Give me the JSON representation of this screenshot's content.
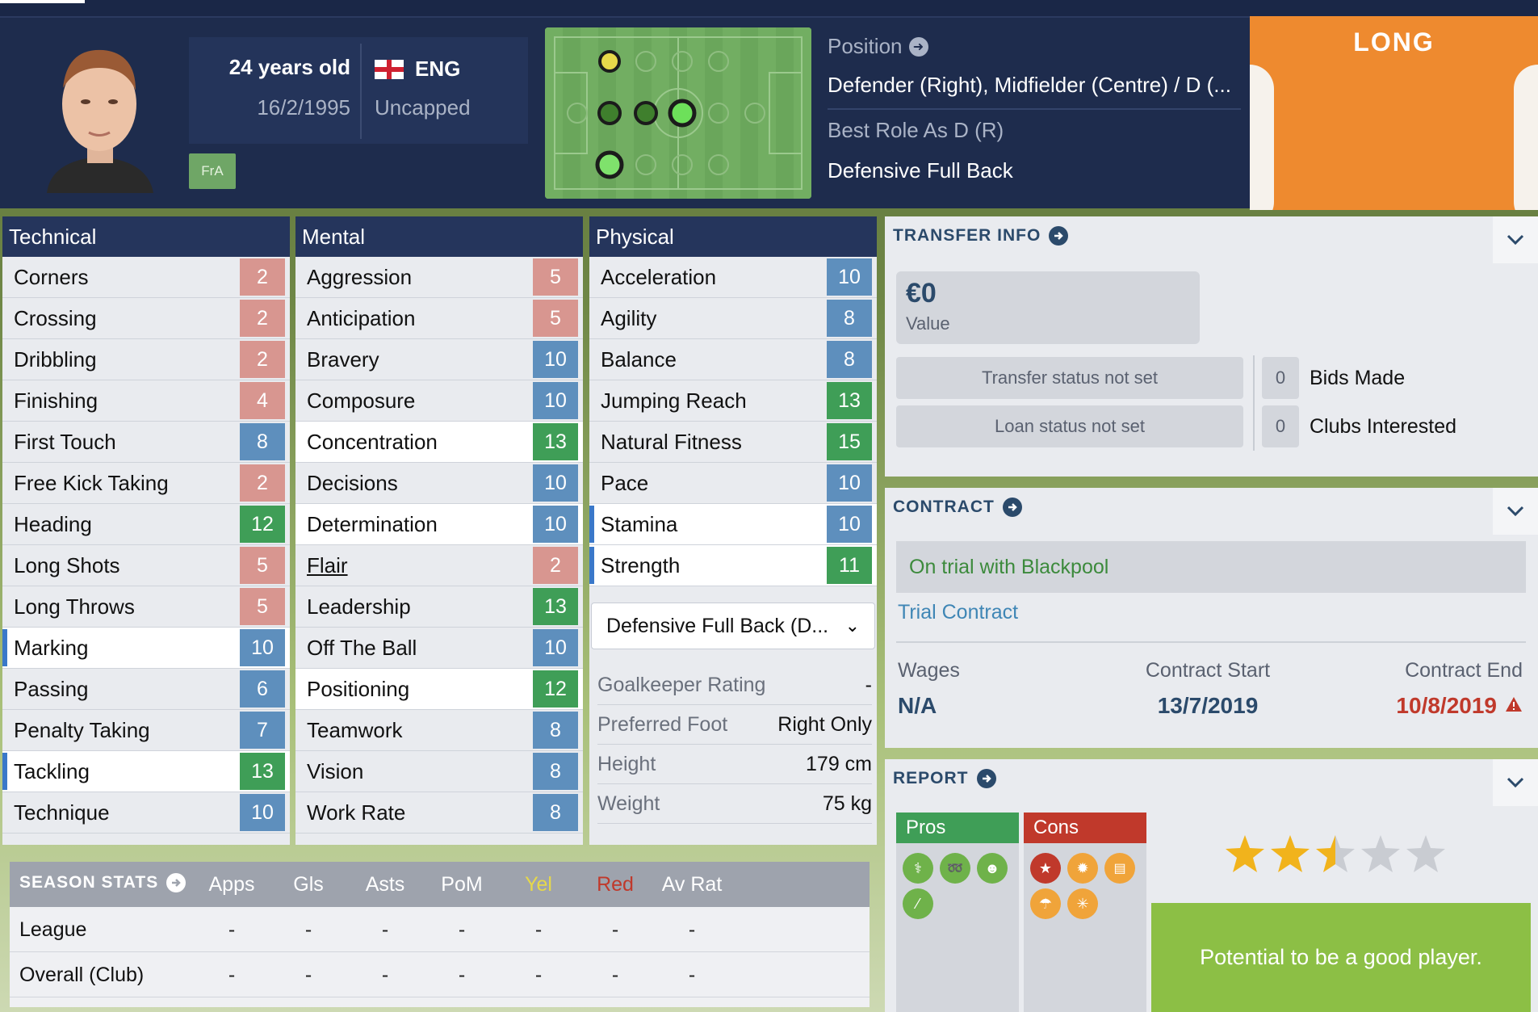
{
  "header": {
    "age": "24 years old",
    "nation": "ENG",
    "dob": "16/2/1995",
    "caps": "Uncapped",
    "badge": "FrA",
    "position_label": "Position",
    "position_value": "Defender (Right), Midfielder (Centre) / D (...",
    "best_role_label": "Best Role As D (R)",
    "best_role_value": "Defensive Full Back",
    "kit_name": "LONG"
  },
  "technical": {
    "title": "Technical",
    "rows": [
      {
        "name": "Corners",
        "value": "2"
      },
      {
        "name": "Crossing",
        "value": "2"
      },
      {
        "name": "Dribbling",
        "value": "2"
      },
      {
        "name": "Finishing",
        "value": "4"
      },
      {
        "name": "First Touch",
        "value": "8"
      },
      {
        "name": "Free Kick Taking",
        "value": "2"
      },
      {
        "name": "Heading",
        "value": "12"
      },
      {
        "name": "Long Shots",
        "value": "5"
      },
      {
        "name": "Long Throws",
        "value": "5"
      },
      {
        "name": "Marking",
        "value": "10"
      },
      {
        "name": "Passing",
        "value": "6"
      },
      {
        "name": "Penalty Taking",
        "value": "7"
      },
      {
        "name": "Tackling",
        "value": "13"
      },
      {
        "name": "Technique",
        "value": "10"
      }
    ]
  },
  "mental": {
    "title": "Mental",
    "rows": [
      {
        "name": "Aggression",
        "value": "5"
      },
      {
        "name": "Anticipation",
        "value": "5"
      },
      {
        "name": "Bravery",
        "value": "10"
      },
      {
        "name": "Composure",
        "value": "10"
      },
      {
        "name": "Concentration",
        "value": "13"
      },
      {
        "name": "Decisions",
        "value": "10"
      },
      {
        "name": "Determination",
        "value": "10"
      },
      {
        "name": "Flair",
        "value": "2"
      },
      {
        "name": "Leadership",
        "value": "13"
      },
      {
        "name": "Off The Ball",
        "value": "10"
      },
      {
        "name": "Positioning",
        "value": "12"
      },
      {
        "name": "Teamwork",
        "value": "8"
      },
      {
        "name": "Vision",
        "value": "8"
      },
      {
        "name": "Work Rate",
        "value": "8"
      }
    ]
  },
  "physical": {
    "title": "Physical",
    "rows": [
      {
        "name": "Acceleration",
        "value": "10"
      },
      {
        "name": "Agility",
        "value": "8"
      },
      {
        "name": "Balance",
        "value": "8"
      },
      {
        "name": "Jumping Reach",
        "value": "13"
      },
      {
        "name": "Natural Fitness",
        "value": "15"
      },
      {
        "name": "Pace",
        "value": "10"
      },
      {
        "name": "Stamina",
        "value": "10"
      },
      {
        "name": "Strength",
        "value": "11"
      }
    ],
    "role_select": "Defensive Full Back (D...",
    "details": [
      {
        "label": "Goalkeeper Rating",
        "value": "-"
      },
      {
        "label": "Preferred Foot",
        "value": "Right Only"
      },
      {
        "label": "Height",
        "value": "179 cm"
      },
      {
        "label": "Weight",
        "value": "75 kg"
      }
    ]
  },
  "transfer": {
    "title": "TRANSFER INFO",
    "value": "€0",
    "value_label": "Value",
    "transfer_status": "Transfer status not set",
    "loan_status": "Loan status not set",
    "bids_count": "0",
    "bids_label": "Bids Made",
    "clubs_count": "0",
    "clubs_label": "Clubs Interested"
  },
  "contract": {
    "title": "CONTRACT",
    "trial": "On trial with Blackpool",
    "type": "Trial Contract",
    "wages_label": "Wages",
    "wages": "N/A",
    "start_label": "Contract Start",
    "start": "13/7/2019",
    "end_label": "Contract End",
    "end": "10/8/2019"
  },
  "report": {
    "title": "REPORT",
    "pros": "Pros",
    "cons": "Cons",
    "rating": 2.5,
    "summary": "Potential to be a good player."
  },
  "season_stats": {
    "title": "SEASON STATS",
    "columns": [
      "Apps",
      "Gls",
      "Asts",
      "PoM",
      "Yel",
      "Red",
      "Av Rat"
    ],
    "rows": [
      {
        "label": "League",
        "values": [
          "-",
          "-",
          "-",
          "-",
          "-",
          "-",
          "-"
        ]
      },
      {
        "label": "Overall (Club)",
        "values": [
          "-",
          "-",
          "-",
          "-",
          "-",
          "-",
          "-"
        ]
      }
    ]
  },
  "colors": {
    "low": "#d89690",
    "mid": "#5e8fbd",
    "high": "#3f9e57",
    "accent": "#2b4a6b",
    "yellow_card": "#e6d84a",
    "red_card": "#c0392b"
  },
  "highlighted_rows": {
    "technical": [
      "Marking",
      "Tackling"
    ],
    "mental": [
      "Concentration",
      "Determination",
      "Positioning"
    ],
    "physical": [
      "Stamina",
      "Strength"
    ]
  }
}
